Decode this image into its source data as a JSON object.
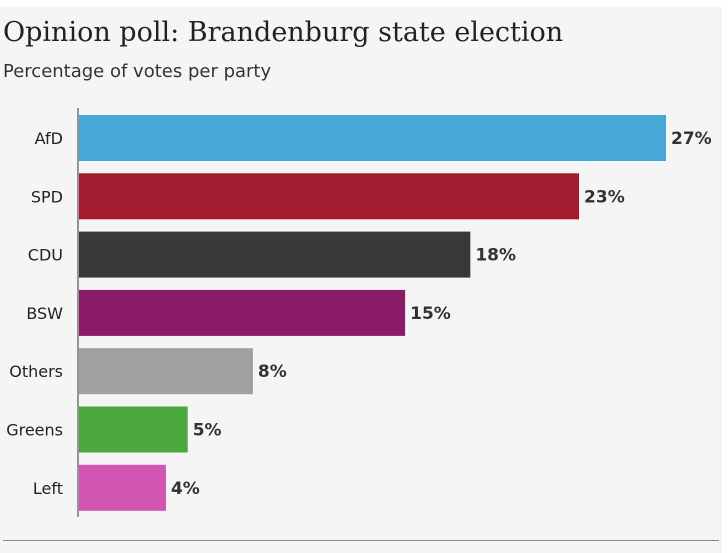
{
  "chart_data": {
    "type": "bar",
    "orientation": "horizontal",
    "title": "Opinion poll: Brandenburg state election",
    "subtitle": "Percentage of votes per party",
    "categories": [
      "AfD",
      "SPD",
      "CDU",
      "BSW",
      "Others",
      "Greens",
      "Left"
    ],
    "values": [
      27,
      23,
      18,
      15,
      8,
      5,
      4
    ],
    "value_labels": [
      "27%",
      "23%",
      "18%",
      "15%",
      "8%",
      "5%",
      "4%"
    ],
    "colors": [
      "#47a8d8",
      "#a31b2e",
      "#383838",
      "#8a1b68",
      "#a0a0a0",
      "#4aa83d",
      "#d156b1"
    ],
    "xlim": [
      0,
      27
    ],
    "grid": false,
    "legend": "none"
  }
}
